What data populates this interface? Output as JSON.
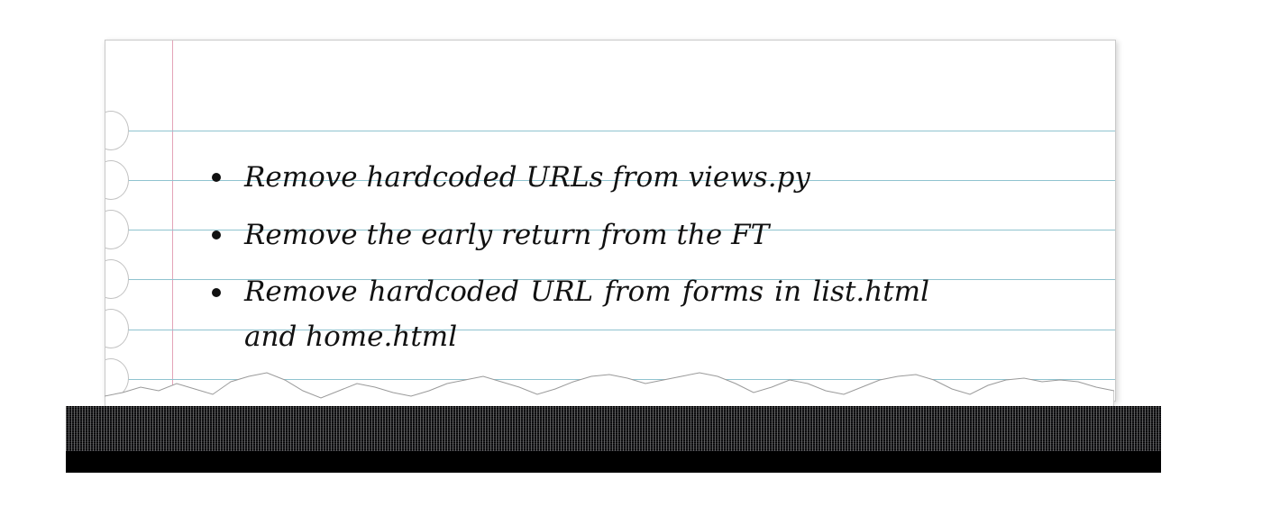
{
  "note": {
    "items": [
      "Remove hardcoded URLs from views.py",
      "Remove the early return from the FT",
      "Remove hardcoded URL from forms in list.html and home.html"
    ]
  },
  "colors": {
    "rule_line": "#8fc3cf",
    "margin_line": "#e3a3b8",
    "ink": "#111111"
  }
}
